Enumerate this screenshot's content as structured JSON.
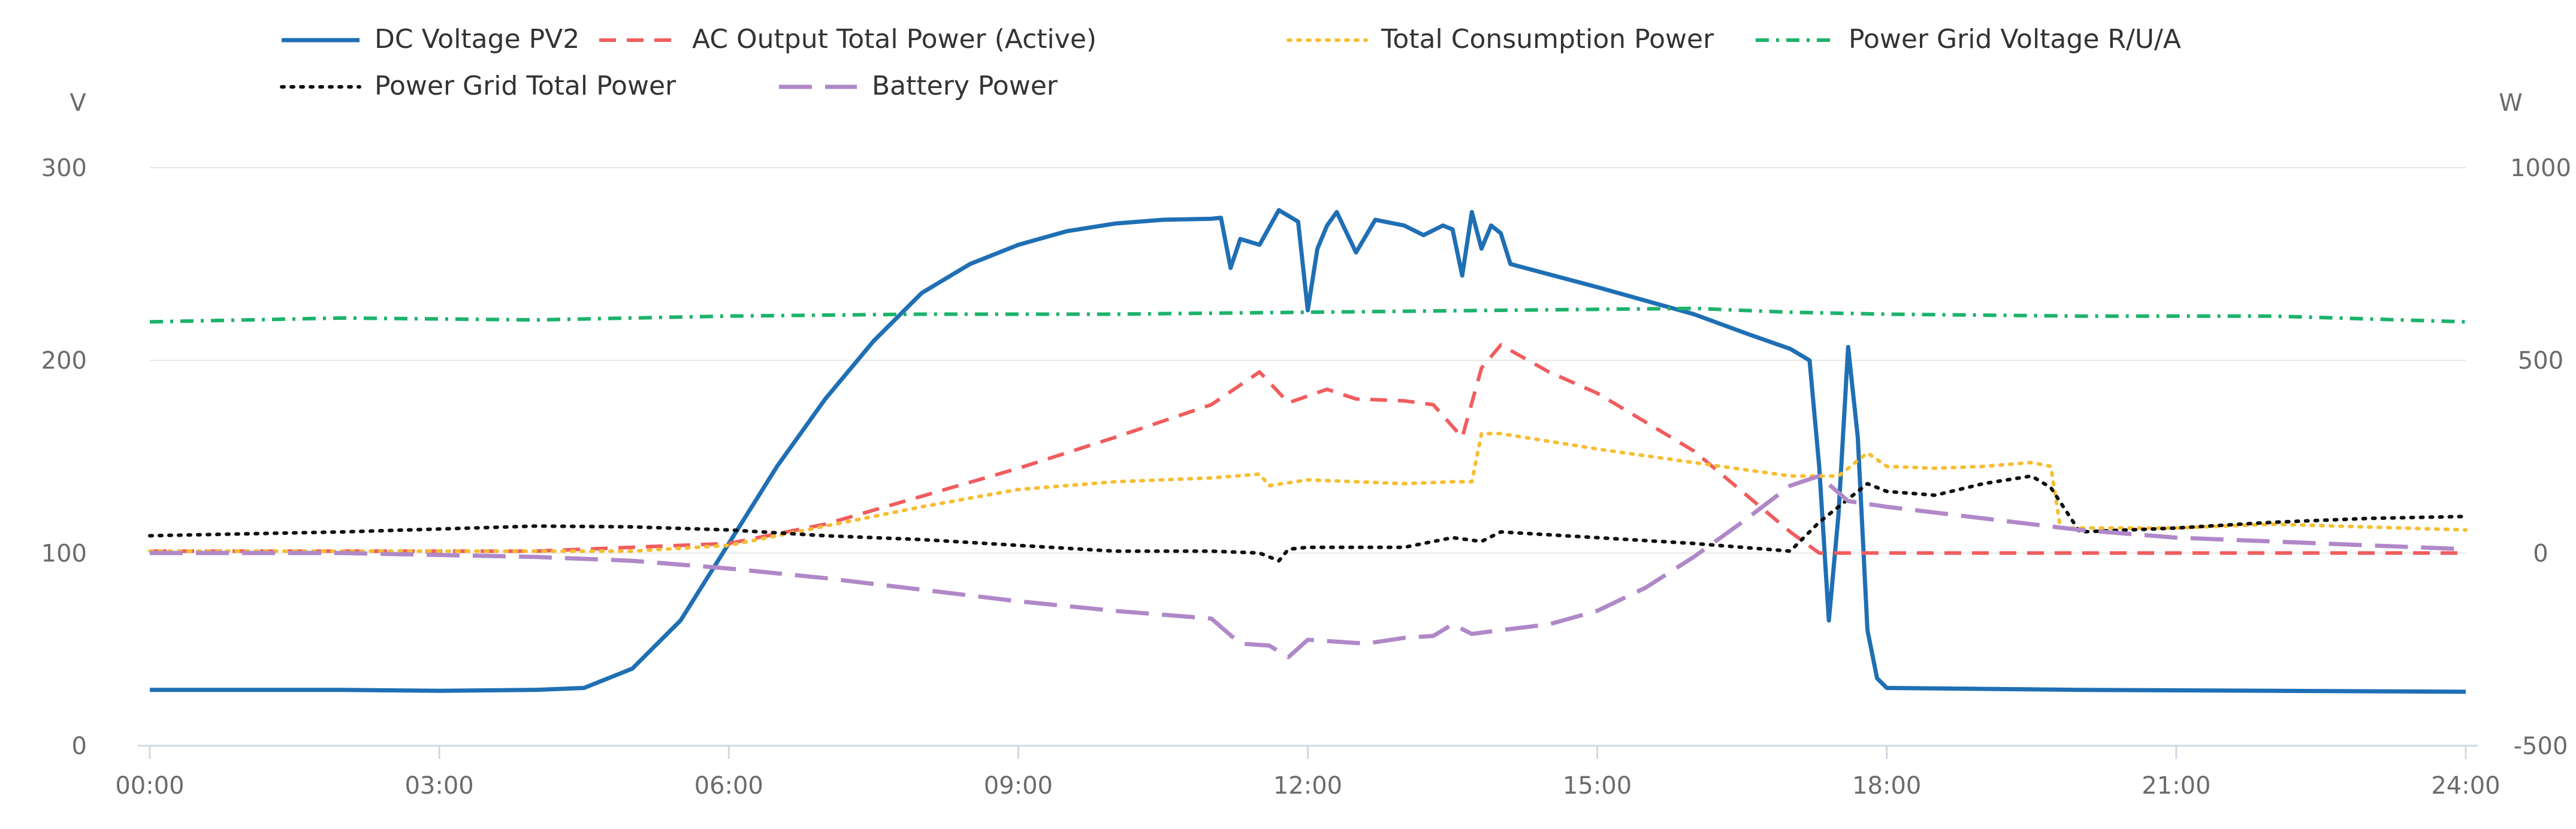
{
  "chart_data": {
    "type": "line",
    "title": "",
    "xlabel": "",
    "x_ticks": [
      "00:00",
      "03:00",
      "06:00",
      "09:00",
      "12:00",
      "15:00",
      "18:00",
      "21:00",
      "24:00"
    ],
    "x_range_hours": [
      0,
      24
    ],
    "left_axis": {
      "unit": "V",
      "ticks": [
        0,
        100,
        200,
        300
      ],
      "range": [
        0,
        300
      ]
    },
    "right_axis": {
      "unit": "W",
      "ticks": [
        -500,
        0,
        500,
        1000
      ],
      "range": [
        -500,
        1000
      ]
    },
    "legend": {
      "position": "top"
    },
    "series": [
      {
        "name": "DC Voltage PV2",
        "axis": "left",
        "color": "#1f6fb4",
        "dash": "solid",
        "points": [
          [
            0,
            29
          ],
          [
            2,
            29
          ],
          [
            3,
            28.5
          ],
          [
            4,
            29
          ],
          [
            4.5,
            30
          ],
          [
            5,
            40
          ],
          [
            5.5,
            65
          ],
          [
            6,
            105
          ],
          [
            6.5,
            145
          ],
          [
            7,
            180
          ],
          [
            7.5,
            210
          ],
          [
            8,
            235
          ],
          [
            8.5,
            250
          ],
          [
            9,
            260
          ],
          [
            9.5,
            267
          ],
          [
            10,
            271
          ],
          [
            10.5,
            273
          ],
          [
            11,
            273.5
          ],
          [
            11.1,
            274
          ],
          [
            11.2,
            248
          ],
          [
            11.3,
            263
          ],
          [
            11.5,
            260
          ],
          [
            11.7,
            278
          ],
          [
            11.9,
            272
          ],
          [
            12,
            226
          ],
          [
            12.1,
            258
          ],
          [
            12.2,
            270
          ],
          [
            12.3,
            277
          ],
          [
            12.5,
            256
          ],
          [
            12.7,
            273
          ],
          [
            13,
            270
          ],
          [
            13.2,
            265
          ],
          [
            13.4,
            270
          ],
          [
            13.5,
            268
          ],
          [
            13.6,
            244
          ],
          [
            13.7,
            277
          ],
          [
            13.8,
            258
          ],
          [
            13.9,
            270
          ],
          [
            14,
            266
          ],
          [
            14.1,
            250
          ],
          [
            15,
            238
          ],
          [
            16,
            224
          ],
          [
            16.6,
            213
          ],
          [
            17,
            206
          ],
          [
            17.2,
            200
          ],
          [
            17.3,
            145
          ],
          [
            17.4,
            65
          ],
          [
            17.5,
            120
          ],
          [
            17.6,
            207
          ],
          [
            17.7,
            160
          ],
          [
            17.8,
            60
          ],
          [
            17.9,
            35
          ],
          [
            18,
            30
          ],
          [
            20,
            29
          ],
          [
            22,
            28.5
          ],
          [
            24,
            28
          ]
        ]
      },
      {
        "name": "AC Output Total Power (Active)",
        "axis": "right",
        "color": "#f05d5e",
        "dash": "dashed",
        "points": [
          [
            0,
            5
          ],
          [
            4,
            5
          ],
          [
            6,
            25
          ],
          [
            7,
            75
          ],
          [
            9,
            220
          ],
          [
            10,
            300
          ],
          [
            11,
            385
          ],
          [
            11.5,
            470
          ],
          [
            11.8,
            390
          ],
          [
            12.2,
            425
          ],
          [
            12.5,
            400
          ],
          [
            13,
            395
          ],
          [
            13.3,
            385
          ],
          [
            13.6,
            300
          ],
          [
            13.8,
            480
          ],
          [
            14,
            540
          ],
          [
            14.5,
            470
          ],
          [
            15,
            415
          ],
          [
            16,
            265
          ],
          [
            17,
            55
          ],
          [
            17.3,
            0
          ],
          [
            24,
            0
          ]
        ]
      },
      {
        "name": "Total Consumption Power",
        "axis": "right",
        "color": "#f6be31",
        "dash": "dotted",
        "points": [
          [
            0,
            5
          ],
          [
            4,
            5
          ],
          [
            5,
            5
          ],
          [
            6,
            20
          ],
          [
            7,
            70
          ],
          [
            8,
            120
          ],
          [
            9,
            165
          ],
          [
            10,
            185
          ],
          [
            11,
            195
          ],
          [
            11.5,
            205
          ],
          [
            11.6,
            175
          ],
          [
            12,
            190
          ],
          [
            13,
            180
          ],
          [
            13.5,
            185
          ],
          [
            13.7,
            185
          ],
          [
            13.8,
            310
          ],
          [
            14,
            310
          ],
          [
            15,
            270
          ],
          [
            16,
            235
          ],
          [
            17,
            200
          ],
          [
            17.5,
            200
          ],
          [
            17.8,
            260
          ],
          [
            18,
            225
          ],
          [
            18.5,
            220
          ],
          [
            19,
            225
          ],
          [
            19.5,
            235
          ],
          [
            19.7,
            225
          ],
          [
            19.8,
            65
          ],
          [
            21,
            65
          ],
          [
            22,
            75
          ],
          [
            24,
            60
          ]
        ]
      },
      {
        "name": "Power Grid Voltage R/U/A",
        "axis": "left",
        "color": "#1cb36b",
        "dash": "dashdot",
        "points": [
          [
            0,
            220
          ],
          [
            2,
            222
          ],
          [
            4,
            221
          ],
          [
            6,
            223
          ],
          [
            8,
            224
          ],
          [
            10,
            224
          ],
          [
            12,
            225
          ],
          [
            14,
            226
          ],
          [
            16,
            227
          ],
          [
            17,
            225
          ],
          [
            18,
            224
          ],
          [
            20,
            223
          ],
          [
            22,
            223
          ],
          [
            24,
            220
          ]
        ]
      },
      {
        "name": "Power Grid Total Power",
        "axis": "right",
        "color": "#111111",
        "dash": "dotted",
        "points": [
          [
            0,
            45
          ],
          [
            2,
            55
          ],
          [
            4,
            70
          ],
          [
            5,
            68
          ],
          [
            6,
            60
          ],
          [
            7,
            45
          ],
          [
            8,
            35
          ],
          [
            9,
            20
          ],
          [
            10,
            5
          ],
          [
            11,
            5
          ],
          [
            11.5,
            0
          ],
          [
            11.7,
            -20
          ],
          [
            11.8,
            10
          ],
          [
            12,
            15
          ],
          [
            13,
            15
          ],
          [
            13.5,
            40
          ],
          [
            13.8,
            30
          ],
          [
            14,
            55
          ],
          [
            15,
            40
          ],
          [
            16,
            25
          ],
          [
            17,
            5
          ],
          [
            17.3,
            80
          ],
          [
            17.5,
            120
          ],
          [
            17.8,
            180
          ],
          [
            18,
            160
          ],
          [
            18.5,
            150
          ],
          [
            19,
            180
          ],
          [
            19.5,
            200
          ],
          [
            19.7,
            170
          ],
          [
            20,
            55
          ],
          [
            21,
            65
          ],
          [
            22,
            80
          ],
          [
            23,
            90
          ],
          [
            24,
            95
          ]
        ]
      },
      {
        "name": "Battery Power",
        "axis": "right",
        "color": "#b088c8",
        "dash": "longdash",
        "points": [
          [
            0,
            0
          ],
          [
            2,
            0
          ],
          [
            4,
            -10
          ],
          [
            5,
            -20
          ],
          [
            6,
            -40
          ],
          [
            7,
            -65
          ],
          [
            8,
            -95
          ],
          [
            9,
            -125
          ],
          [
            10,
            -150
          ],
          [
            11,
            -170
          ],
          [
            11.3,
            -235
          ],
          [
            11.6,
            -240
          ],
          [
            11.8,
            -270
          ],
          [
            12,
            -225
          ],
          [
            12.3,
            -230
          ],
          [
            12.6,
            -235
          ],
          [
            13,
            -220
          ],
          [
            13.3,
            -215
          ],
          [
            13.5,
            -185
          ],
          [
            13.7,
            -210
          ],
          [
            14,
            -200
          ],
          [
            14.5,
            -185
          ],
          [
            15,
            -150
          ],
          [
            15.5,
            -90
          ],
          [
            16,
            -10
          ],
          [
            16.5,
            80
          ],
          [
            17,
            175
          ],
          [
            17.3,
            200
          ],
          [
            17.6,
            135
          ],
          [
            18,
            120
          ],
          [
            19,
            90
          ],
          [
            20,
            60
          ],
          [
            21,
            40
          ],
          [
            22,
            30
          ],
          [
            23,
            20
          ],
          [
            24,
            10
          ]
        ]
      }
    ]
  }
}
